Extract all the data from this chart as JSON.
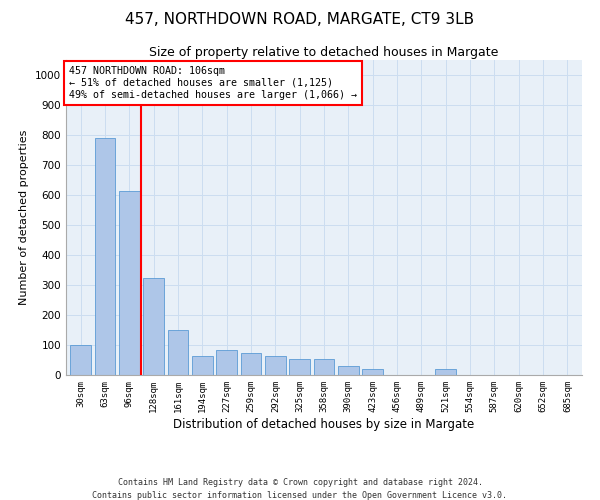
{
  "title": "457, NORTHDOWN ROAD, MARGATE, CT9 3LB",
  "subtitle": "Size of property relative to detached houses in Margate",
  "xlabel": "Distribution of detached houses by size in Margate",
  "ylabel": "Number of detached properties",
  "footnote1": "Contains HM Land Registry data © Crown copyright and database right 2024.",
  "footnote2": "Contains public sector information licensed under the Open Government Licence v3.0.",
  "categories": [
    "30sqm",
    "63sqm",
    "96sqm",
    "128sqm",
    "161sqm",
    "194sqm",
    "227sqm",
    "259sqm",
    "292sqm",
    "325sqm",
    "358sqm",
    "390sqm",
    "423sqm",
    "456sqm",
    "489sqm",
    "521sqm",
    "554sqm",
    "587sqm",
    "620sqm",
    "652sqm",
    "685sqm"
  ],
  "values": [
    100,
    790,
    615,
    325,
    150,
    65,
    85,
    75,
    65,
    55,
    55,
    30,
    20,
    0,
    0,
    20,
    0,
    0,
    0,
    0,
    0
  ],
  "bar_color": "#aec6e8",
  "bar_edge_color": "#5b9bd5",
  "vline_x": 2.5,
  "vline_color": "red",
  "annotation_text": "457 NORTHDOWN ROAD: 106sqm\n← 51% of detached houses are smaller (1,125)\n49% of semi-detached houses are larger (1,066) →",
  "ylim": [
    0,
    1050
  ],
  "yticks": [
    0,
    100,
    200,
    300,
    400,
    500,
    600,
    700,
    800,
    900,
    1000
  ],
  "grid_color": "#ccddf0",
  "bg_color": "#e8f0f8",
  "title_fontsize": 11,
  "subtitle_fontsize": 9,
  "xlabel_fontsize": 8.5,
  "ylabel_fontsize": 8
}
